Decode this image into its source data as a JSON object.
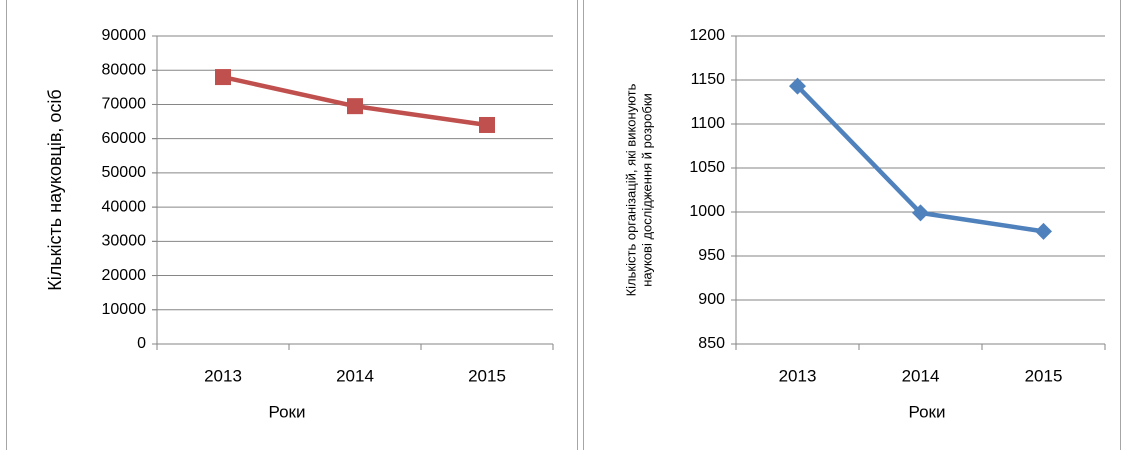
{
  "chart_data": [
    {
      "type": "line",
      "categories": [
        "2013",
        "2014",
        "2015"
      ],
      "series": [
        {
          "values": [
            78000,
            69500,
            64000
          ],
          "color": "#c0504d",
          "marker": "square"
        }
      ],
      "yticks": [
        "0",
        "10000",
        "20000",
        "30000",
        "40000",
        "50000",
        "60000",
        "70000",
        "80000",
        "90000"
      ],
      "ylim": [
        0,
        90000
      ],
      "xlabel": "Роки",
      "ylabel": "Кількість науковців, осіб",
      "grid": true
    },
    {
      "type": "line",
      "categories": [
        "2013",
        "2014",
        "2015"
      ],
      "series": [
        {
          "values": [
            1143,
            999,
            978
          ],
          "color": "#4f81bd",
          "marker": "diamond"
        }
      ],
      "yticks": [
        "850",
        "900",
        "950",
        "1000",
        "1050",
        "1100",
        "1150",
        "1200"
      ],
      "ylim": [
        850,
        1200
      ],
      "xlabel": "Роки",
      "ylabel_lines": [
        "Кількість організацій, які виконують",
        "наукові дослідження й розробки"
      ],
      "grid": true
    }
  ]
}
